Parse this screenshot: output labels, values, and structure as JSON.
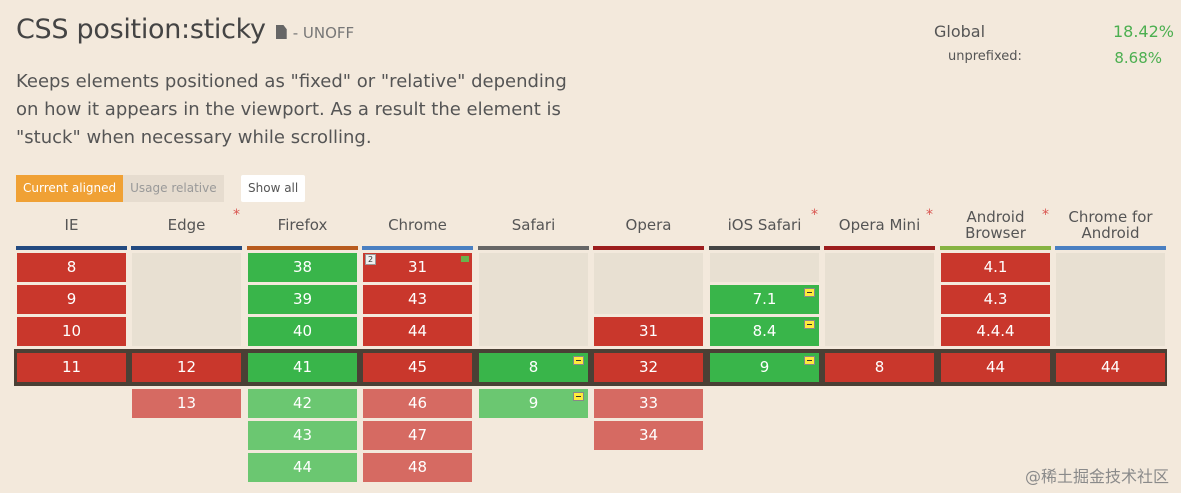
{
  "header": {
    "title": "CSS position:sticky",
    "status": "- UNOFF",
    "description": "Keeps elements positioned as \"fixed\" or \"relative\" depending on how it appears in the viewport. As a result the element is \"stuck\" when necessary while scrolling."
  },
  "usage": {
    "global_label": "Global",
    "global_value": "18.42%",
    "unprefixed_label": "unprefixed:",
    "unprefixed_value": "8.68%"
  },
  "controls": {
    "current_aligned": "Current aligned",
    "usage_relative": "Usage relative",
    "show_all": "Show all"
  },
  "browsers": [
    {
      "name": "IE",
      "color": "#234a80"
    },
    {
      "name": "Edge",
      "color": "#234a80",
      "asterisk": "*"
    },
    {
      "name": "Firefox",
      "color": "#b85b1e"
    },
    {
      "name": "Chrome",
      "color": "#4a7fc1"
    },
    {
      "name": "Safari",
      "color": "#666666"
    },
    {
      "name": "Opera",
      "color": "#9c1d1d"
    },
    {
      "name": "iOS Safari",
      "color": "#444444",
      "asterisk": "*"
    },
    {
      "name": "Opera Mini",
      "color": "#9c1d1d",
      "asterisk": "*"
    },
    {
      "name": "Android Browser",
      "color": "#86b342",
      "asterisk": "*"
    },
    {
      "name": "Chrome for Android",
      "color": "#4a7fc1"
    }
  ],
  "cells": {
    "ie": [
      "8",
      "9",
      "10",
      "11"
    ],
    "edge": [
      "12",
      "13"
    ],
    "firefox": [
      "38",
      "39",
      "40",
      "41",
      "42",
      "43",
      "44"
    ],
    "chrome": [
      "31",
      "43",
      "44",
      "45",
      "46",
      "47",
      "48"
    ],
    "chrome_note": "2",
    "safari": [
      "8",
      "9"
    ],
    "opera": [
      "31",
      "32",
      "33",
      "34"
    ],
    "ios": [
      "7.1",
      "8.4",
      "9"
    ],
    "operamini": [
      "8"
    ],
    "android": [
      "4.1",
      "4.3",
      "4.4.4",
      "44"
    ],
    "chromeandroid": [
      "44"
    ]
  },
  "watermark": "@稀土掘金技术社区"
}
